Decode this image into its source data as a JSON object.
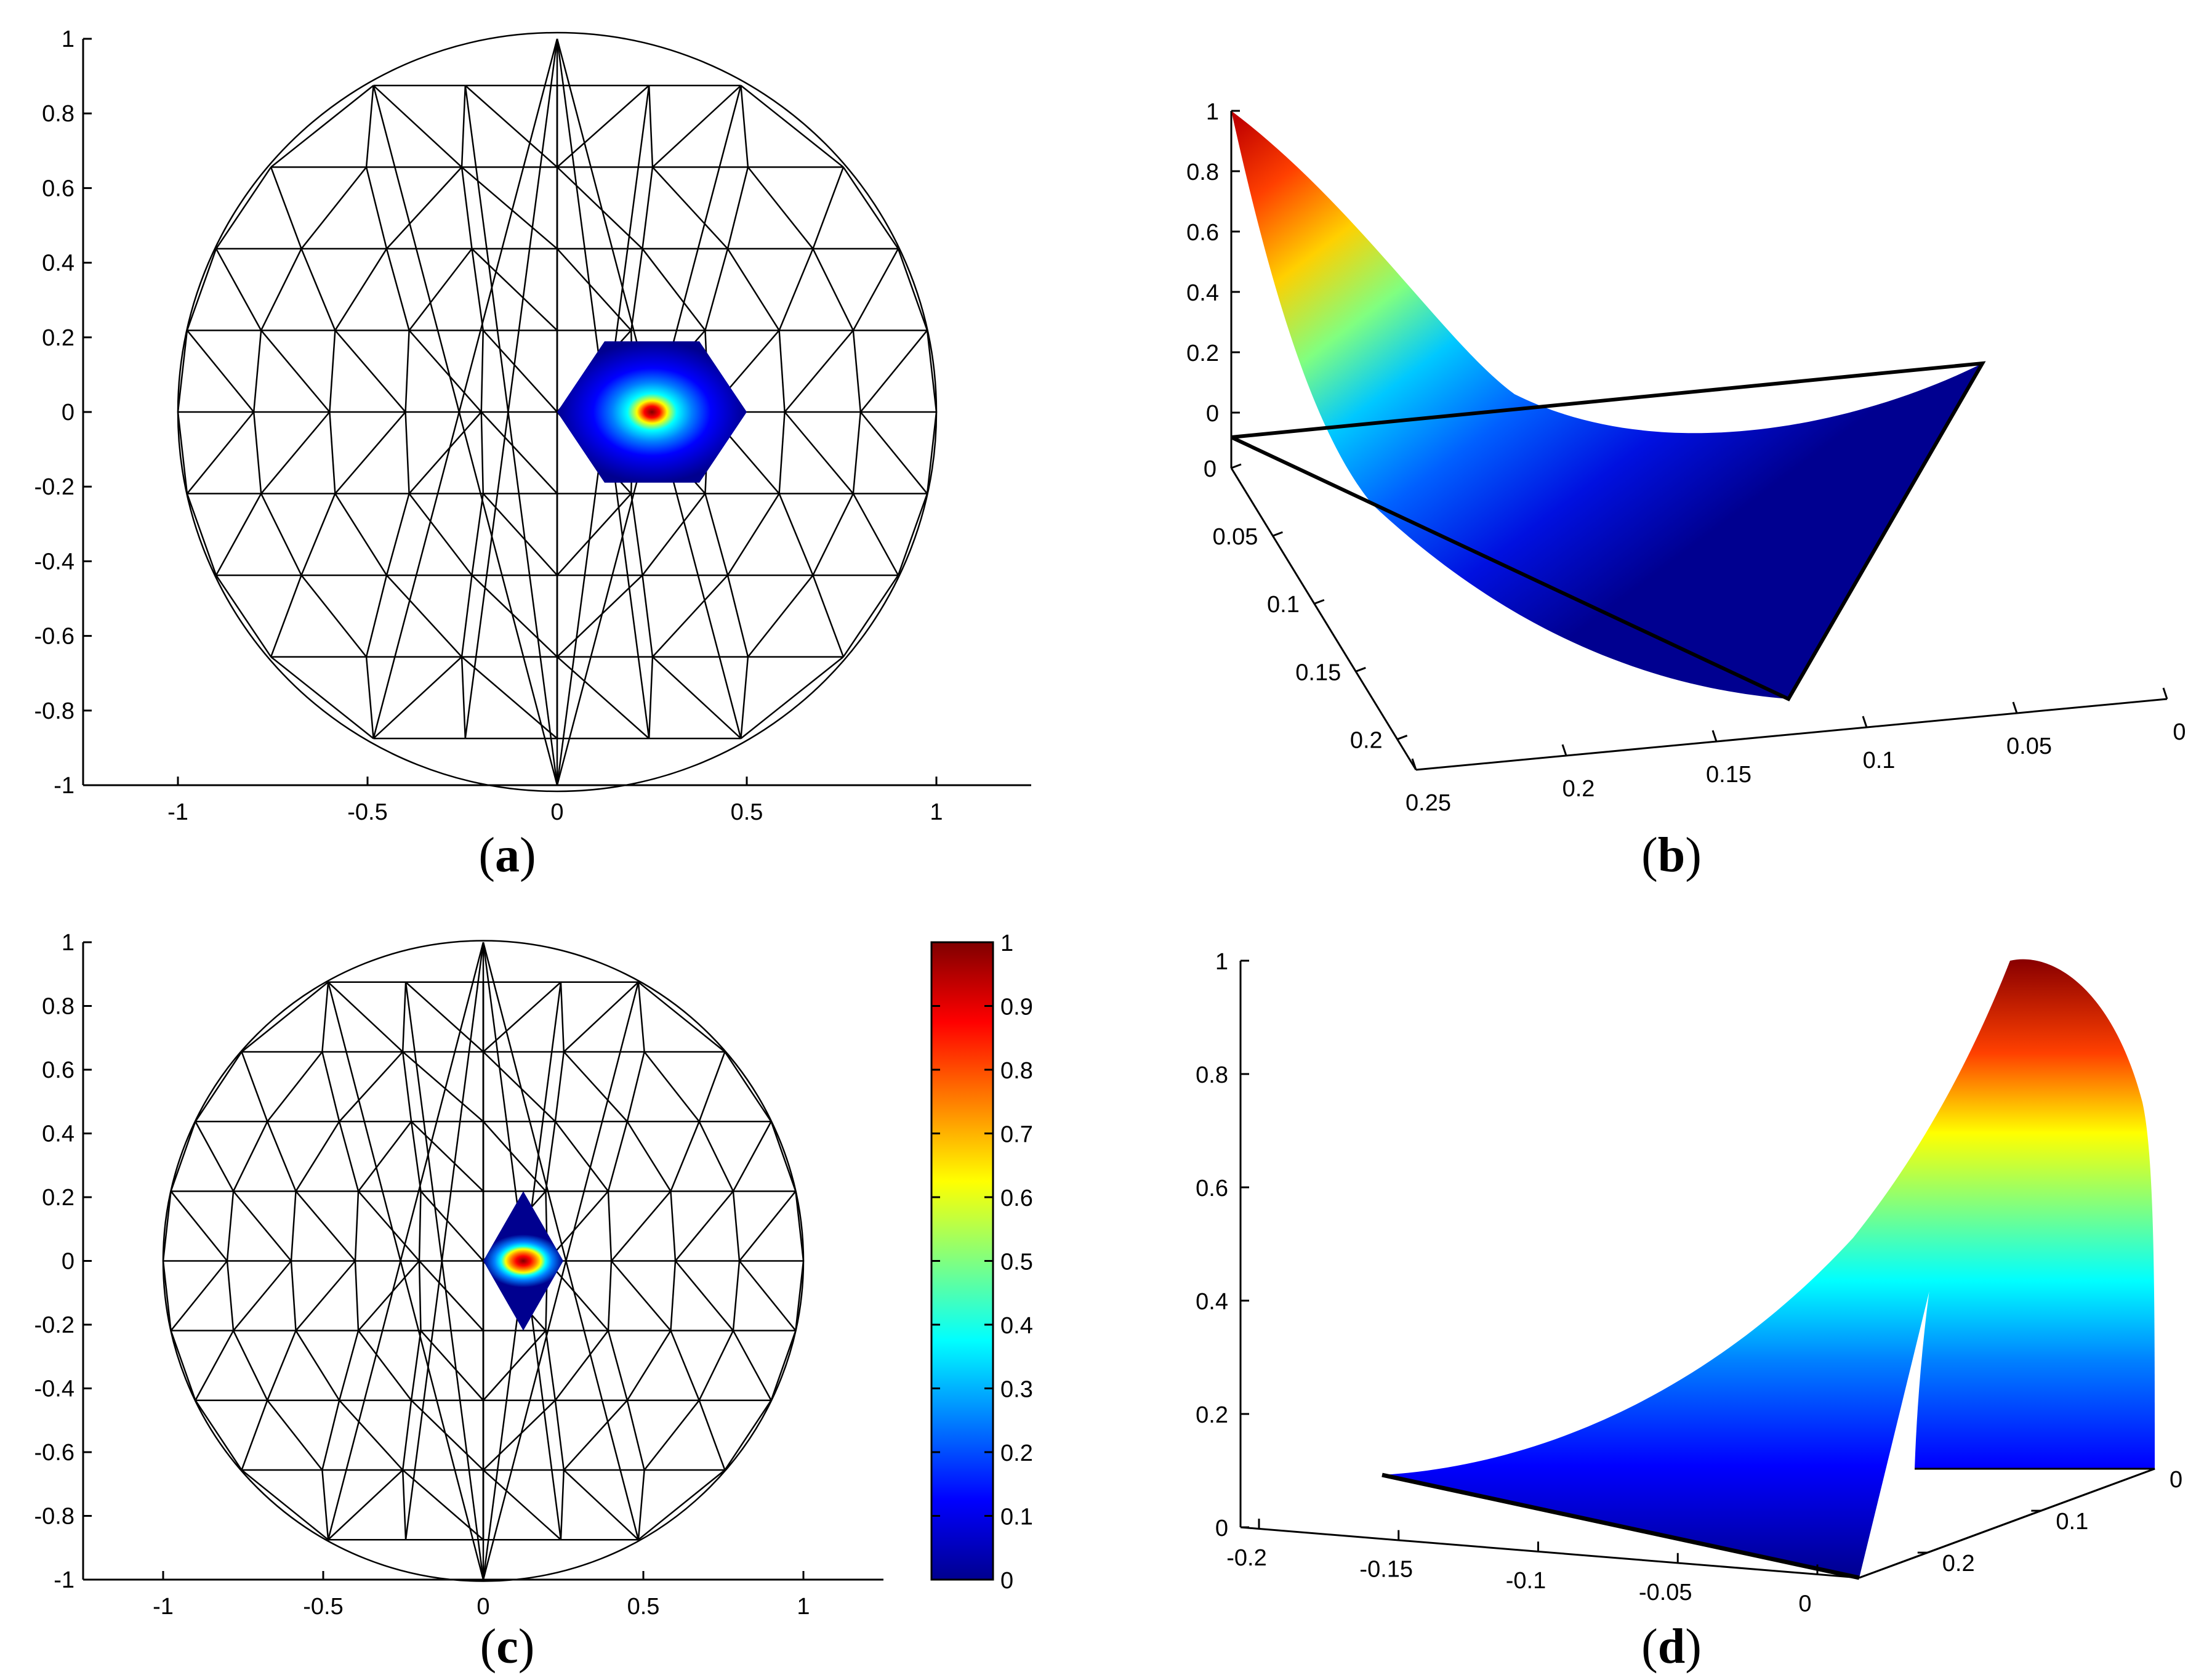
{
  "panels": [
    {
      "id": "a",
      "label_open": "(",
      "label_letter": "a",
      "label_close": ")"
    },
    {
      "id": "b",
      "label_open": "(",
      "label_letter": "b",
      "label_close": ")"
    },
    {
      "id": "c",
      "label_open": "(",
      "label_letter": "c",
      "label_close": ")"
    },
    {
      "id": "d",
      "label_open": "(",
      "label_letter": "d",
      "label_close": ")"
    }
  ],
  "chart_data": [
    {
      "panel": "a",
      "type": "heatmap",
      "description_kind": "triangular mesh on unit disk with hat basis function over hexagonal support",
      "xlim": [
        -1.25,
        1.25
      ],
      "ylim": [
        -1,
        1
      ],
      "x_ticks": [
        "-1",
        "-0.5",
        "0",
        "0.5",
        "1"
      ],
      "y_ticks": [
        "1",
        "0.8",
        "0.6",
        "0.4",
        "0.2",
        "0",
        "-0.2",
        "-0.4",
        "-0.6",
        "-0.8",
        "-1"
      ],
      "peak_center": [
        0.25,
        0
      ],
      "peak_value": 1,
      "support_shape": "hexagon",
      "support_radius": 0.25,
      "colormap": "jet"
    },
    {
      "panel": "b",
      "type": "surface",
      "description_kind": "3D surface of basis function over triangle",
      "z_ticks": [
        "1",
        "0.8",
        "0.6",
        "0.4",
        "0.2",
        "0"
      ],
      "y_ticks": [
        "0",
        "0.05",
        "0.1",
        "0.15",
        "0.2"
      ],
      "x_ticks": [
        "0.25",
        "0.2",
        "0.15",
        "0.1",
        "0.05",
        "0"
      ],
      "zlim": [
        0,
        1
      ],
      "colormap": "jet"
    },
    {
      "panel": "c",
      "type": "heatmap",
      "description_kind": "triangular mesh on unit disk with edge basis function over diamond support",
      "xlim": [
        -1.25,
        1.25
      ],
      "ylim": [
        -1,
        1
      ],
      "x_ticks": [
        "-1",
        "-0.5",
        "0",
        "0.5",
        "1"
      ],
      "y_ticks": [
        "1",
        "0.8",
        "0.6",
        "0.4",
        "0.2",
        "0",
        "-0.2",
        "-0.4",
        "-0.6",
        "-0.8",
        "-1"
      ],
      "peak_center": [
        0.125,
        0
      ],
      "peak_value": 1,
      "support_shape": "diamond",
      "colormap": "jet",
      "colorbar": {
        "range": [
          0,
          1
        ],
        "ticks": [
          "1",
          "0.9",
          "0.8",
          "0.7",
          "0.6",
          "0.5",
          "0.4",
          "0.3",
          "0.2",
          "0.1",
          "0"
        ]
      }
    },
    {
      "panel": "d",
      "type": "surface",
      "description_kind": "3D surface of edge basis function",
      "z_ticks": [
        "1",
        "0.8",
        "0.6",
        "0.4",
        "0.2",
        "0"
      ],
      "x_ticks": [
        "-0.2",
        "-0.15",
        "-0.1",
        "-0.05",
        "0"
      ],
      "y_ticks": [
        "0",
        "0.1",
        "0.2"
      ],
      "zlim": [
        0,
        1
      ],
      "colormap": "jet"
    }
  ],
  "colors": {
    "jet": [
      "#00008f",
      "#0000ff",
      "#0080ff",
      "#00ffff",
      "#80ff80",
      "#ffff00",
      "#ff8000",
      "#ff0000",
      "#800000"
    ],
    "line": "#000000",
    "background": "#ffffff"
  }
}
